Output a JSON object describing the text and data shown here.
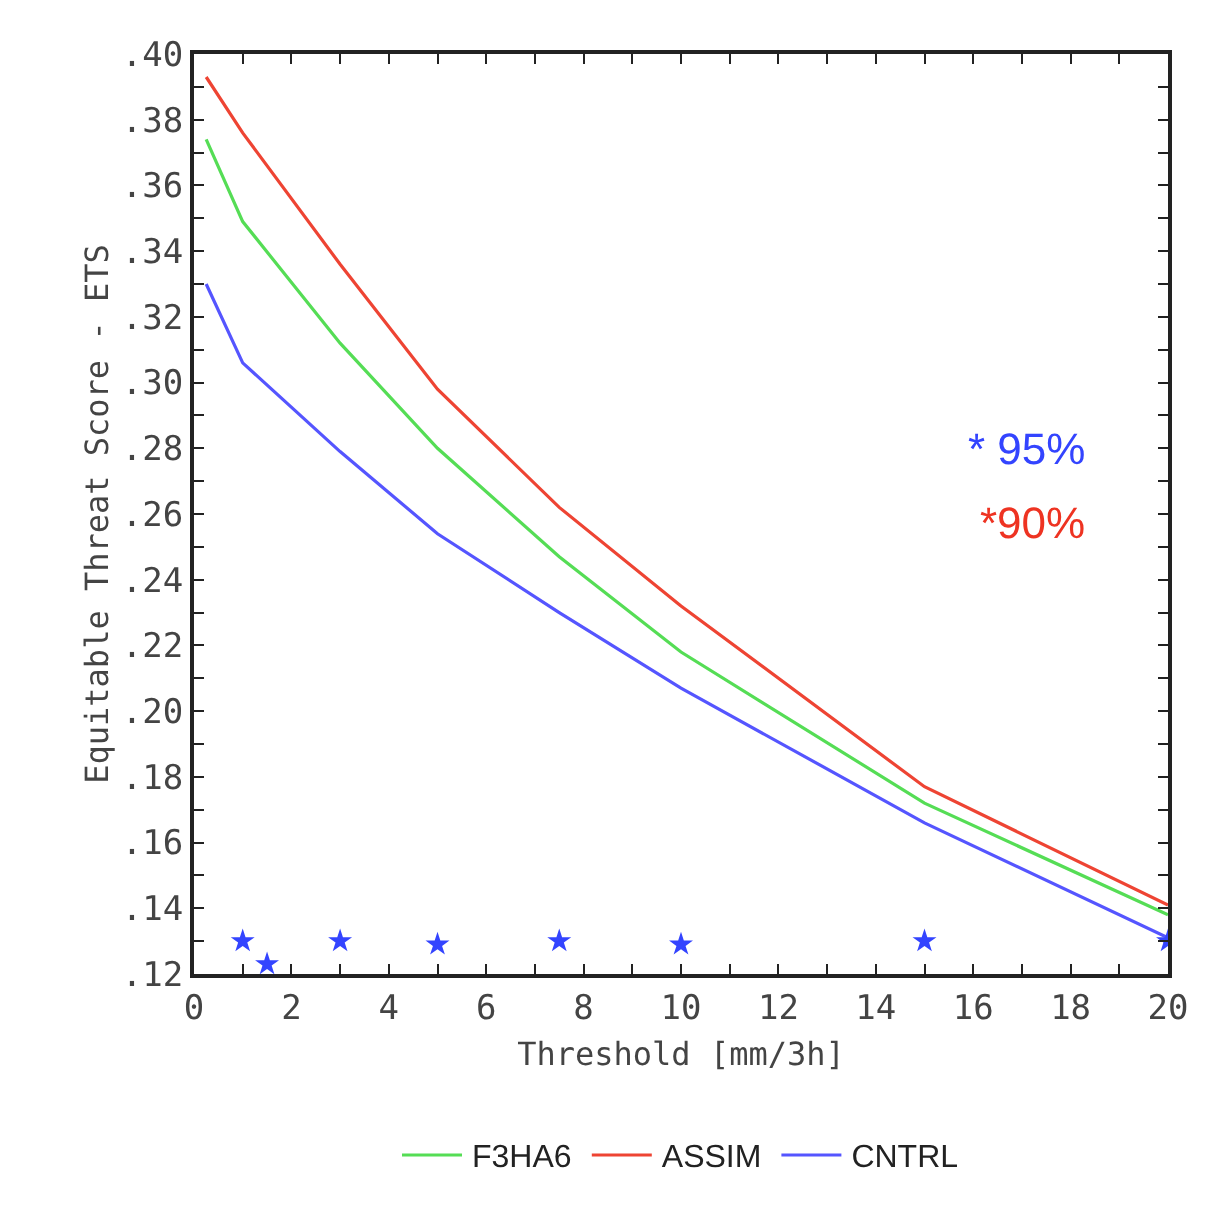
{
  "chart_data": {
    "type": "line",
    "xlabel": "Threshold [mm/3h]",
    "ylabel": "Equitable Threat Score - ETS",
    "xlim": [
      0,
      20
    ],
    "ylim": [
      0.12,
      0.4
    ],
    "xticks": [
      {
        "value": 0,
        "label": "0"
      },
      {
        "value": 1,
        "label": null
      },
      {
        "value": 2,
        "label": "2"
      },
      {
        "value": 3,
        "label": null
      },
      {
        "value": 4,
        "label": "4"
      },
      {
        "value": 5,
        "label": null
      },
      {
        "value": 6,
        "label": "6"
      },
      {
        "value": 7,
        "label": null
      },
      {
        "value": 8,
        "label": "8"
      },
      {
        "value": 9,
        "label": null
      },
      {
        "value": 10,
        "label": "10"
      },
      {
        "value": 11,
        "label": null
      },
      {
        "value": 12,
        "label": "12"
      },
      {
        "value": 13,
        "label": null
      },
      {
        "value": 14,
        "label": "14"
      },
      {
        "value": 15,
        "label": null
      },
      {
        "value": 16,
        "label": "16"
      },
      {
        "value": 17,
        "label": null
      },
      {
        "value": 18,
        "label": "18"
      },
      {
        "value": 19,
        "label": null
      },
      {
        "value": 20,
        "label": "20"
      }
    ],
    "yticks": [
      {
        "value": 0.12,
        "label": ".12"
      },
      {
        "value": 0.13,
        "label": null
      },
      {
        "value": 0.14,
        "label": ".14"
      },
      {
        "value": 0.15,
        "label": null
      },
      {
        "value": 0.16,
        "label": ".16"
      },
      {
        "value": 0.17,
        "label": null
      },
      {
        "value": 0.18,
        "label": ".18"
      },
      {
        "value": 0.19,
        "label": null
      },
      {
        "value": 0.2,
        "label": ".20"
      },
      {
        "value": 0.21,
        "label": null
      },
      {
        "value": 0.22,
        "label": ".22"
      },
      {
        "value": 0.23,
        "label": null
      },
      {
        "value": 0.24,
        "label": ".24"
      },
      {
        "value": 0.25,
        "label": null
      },
      {
        "value": 0.26,
        "label": ".26"
      },
      {
        "value": 0.27,
        "label": null
      },
      {
        "value": 0.28,
        "label": ".28"
      },
      {
        "value": 0.29,
        "label": null
      },
      {
        "value": 0.3,
        "label": ".30"
      },
      {
        "value": 0.31,
        "label": null
      },
      {
        "value": 0.32,
        "label": ".32"
      },
      {
        "value": 0.33,
        "label": null
      },
      {
        "value": 0.34,
        "label": ".34"
      },
      {
        "value": 0.35,
        "label": null
      },
      {
        "value": 0.36,
        "label": ".36"
      },
      {
        "value": 0.37,
        "label": null
      },
      {
        "value": 0.38,
        "label": ".38"
      },
      {
        "value": 0.39,
        "label": null
      },
      {
        "value": 0.4,
        "label": ".40"
      }
    ],
    "x": [
      0.25,
      1,
      3,
      5,
      7.5,
      10,
      15,
      20
    ],
    "series": [
      {
        "name": "F3HA6",
        "color": "#55dd55",
        "values": [
          0.374,
          0.349,
          0.312,
          0.28,
          0.247,
          0.218,
          0.172,
          0.138
        ],
        "marker": "none"
      },
      {
        "name": "ASSIM",
        "color": "#ee4433",
        "values": [
          0.393,
          0.376,
          0.336,
          0.298,
          0.262,
          0.232,
          0.177,
          0.141
        ],
        "marker": "none"
      },
      {
        "name": "CNTRL",
        "color": "#5555ff",
        "values": [
          0.33,
          0.306,
          0.279,
          0.254,
          0.23,
          0.207,
          0.166,
          0.131
        ],
        "marker": "none"
      },
      {
        "type": "scatter",
        "color": "#3344ff",
        "x": [
          1,
          1.5,
          3,
          5,
          7.5,
          10,
          15,
          20
        ],
        "values": [
          0.13,
          0.123,
          0.13,
          0.129,
          0.13,
          0.129,
          0.13,
          0.13
        ],
        "marker": "star"
      }
    ],
    "grid": false,
    "legend": "bottom",
    "annotations": [
      "* 95%",
      "*90%"
    ]
  }
}
